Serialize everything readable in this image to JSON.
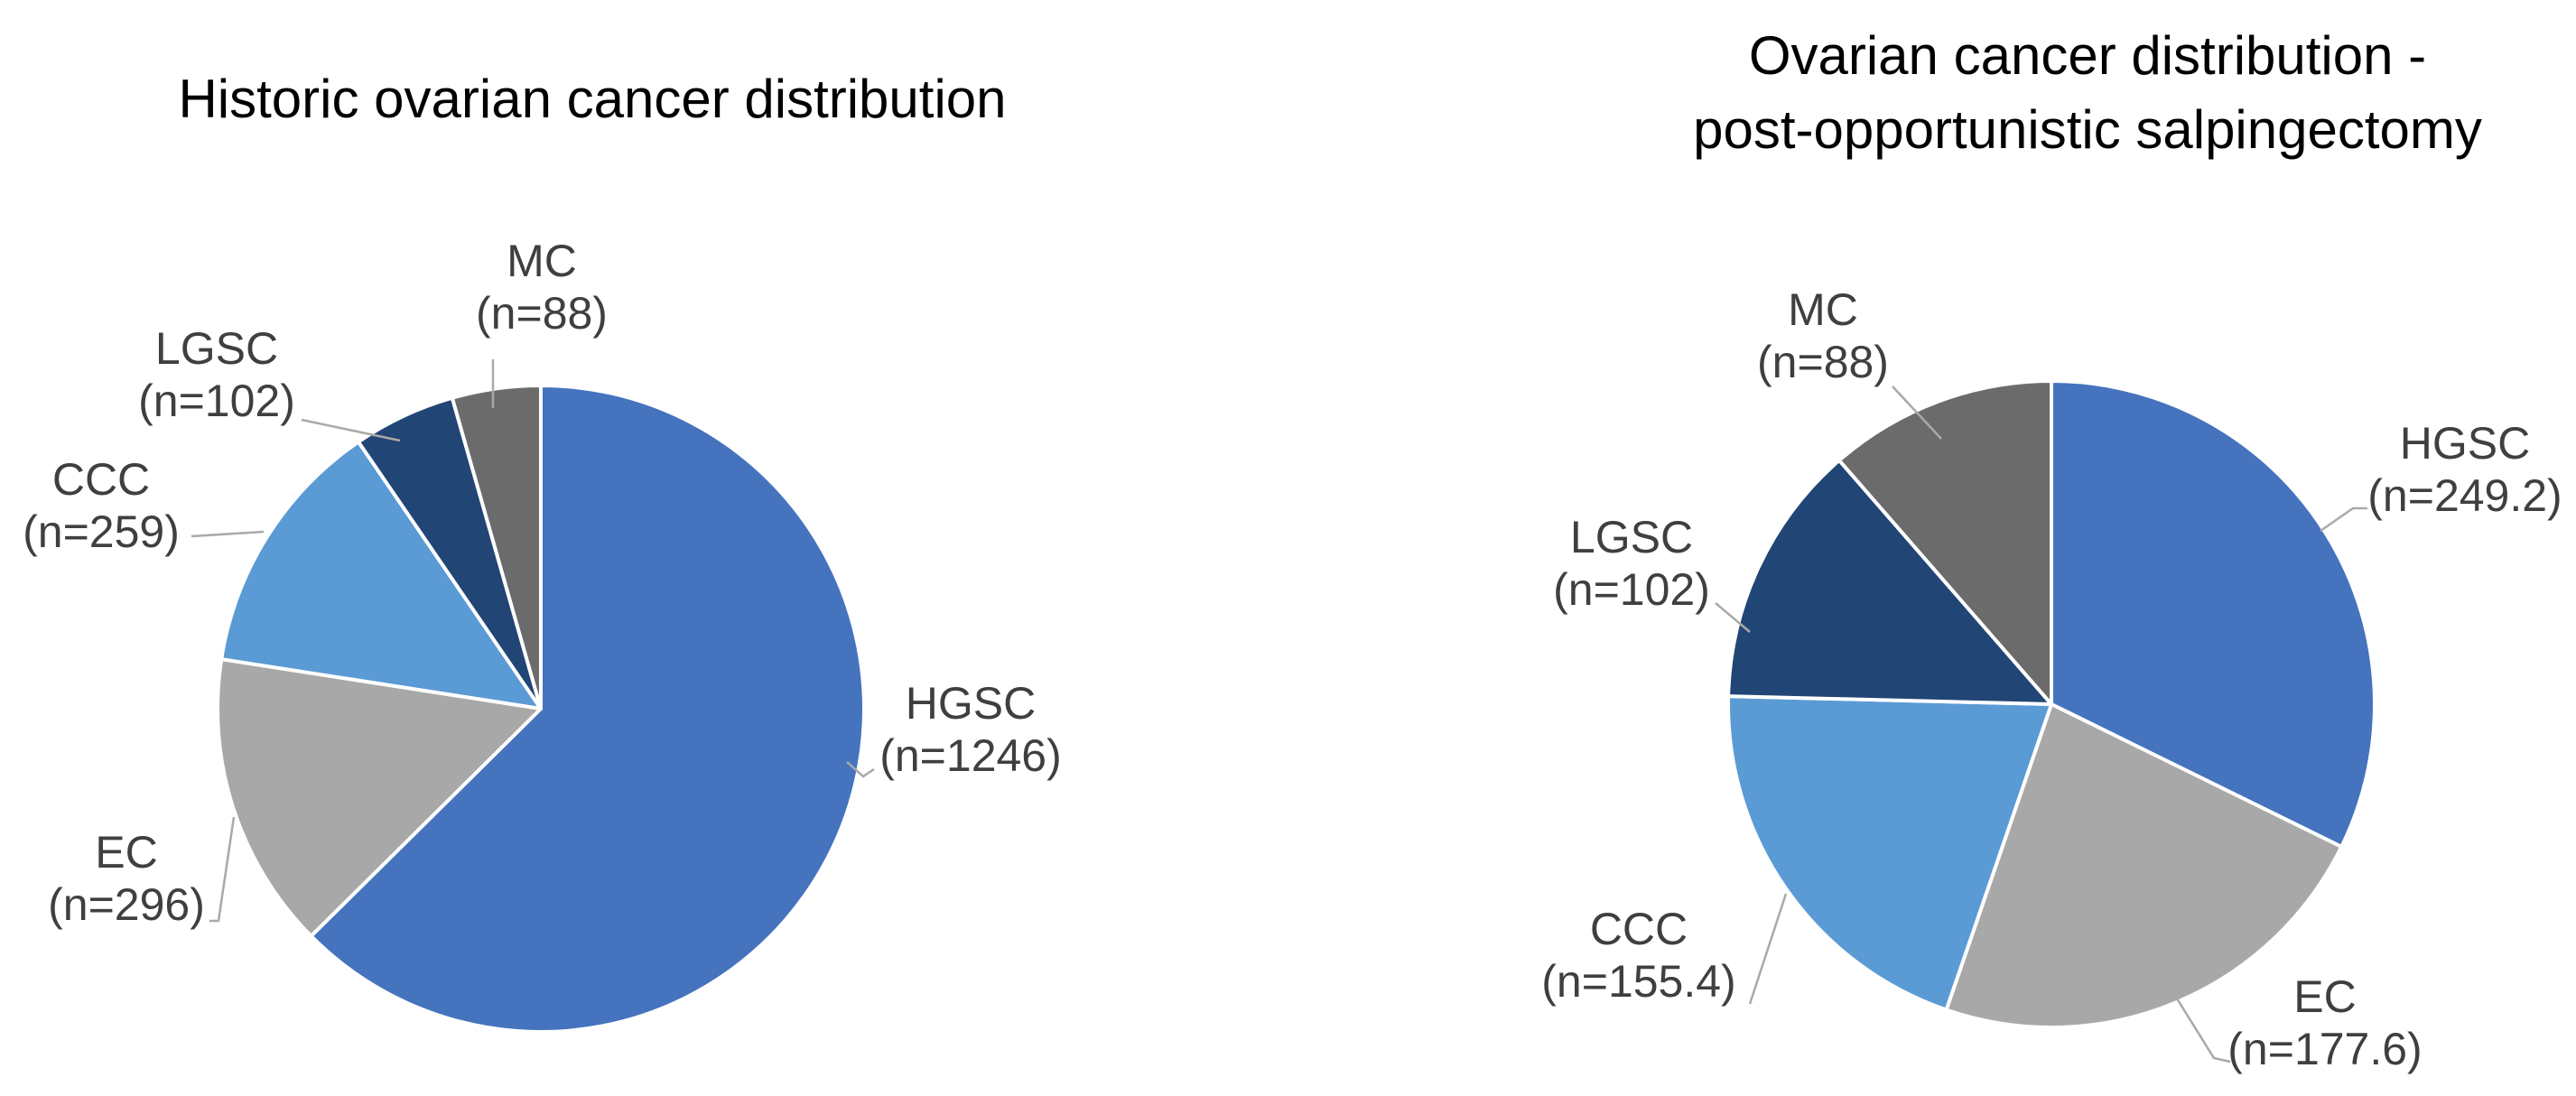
{
  "page": {
    "background": "#ffffff"
  },
  "colors": {
    "hgsc": "#4573BE",
    "ec": "#A8A8A8",
    "ccc": "#5B9BD5",
    "lgsc": "#214575",
    "mc": "#6B6B6B",
    "leader_line": "#A9A9A9",
    "slice_border": "#FFFFFF",
    "title_text": "#000000",
    "label_text": "#3F3F3F"
  },
  "chart_data": [
    {
      "type": "pie",
      "title": "Historic ovarian cancer distribution",
      "title_lines": [
        "Historic ovarian cancer distribution"
      ],
      "categories": [
        "HGSC",
        "EC",
        "CCC",
        "LGSC",
        "MC"
      ],
      "values": [
        1246,
        296,
        259,
        102,
        88
      ],
      "start_angle": "12-o'clock, clockwise",
      "label_style": "outside labels with gray leader lines, format: NAME (n=value)",
      "legend": "none",
      "slices": [
        {
          "name": "HGSC",
          "n_label": "(n=1246)",
          "value": 1246,
          "color": "#4573BE"
        },
        {
          "name": "EC",
          "n_label": "(n=296)",
          "value": 296,
          "color": "#A8A8A8"
        },
        {
          "name": "CCC",
          "n_label": "(n=259)",
          "value": 259,
          "color": "#5B9BD5"
        },
        {
          "name": "LGSC",
          "n_label": "(n=102)",
          "value": 102,
          "color": "#214575"
        },
        {
          "name": "MC",
          "n_label": "(n=88)",
          "value": 88,
          "color": "#6B6B6B"
        }
      ]
    },
    {
      "type": "pie",
      "title": "Ovarian cancer distribution - post-opportunistic salpingectomy",
      "title_lines": [
        "Ovarian cancer distribution -",
        "post-opportunistic salpingectomy"
      ],
      "categories": [
        "HGSC",
        "EC",
        "CCC",
        "LGSC",
        "MC"
      ],
      "values": [
        249.2,
        177.6,
        155.4,
        102,
        88
      ],
      "start_angle": "12-o'clock, clockwise",
      "label_style": "outside labels with gray leader lines, format: NAME (n=value)",
      "legend": "none",
      "slices": [
        {
          "name": "HGSC",
          "n_label": "(n=249.2)",
          "value": 249.2,
          "color": "#4573BE"
        },
        {
          "name": "EC",
          "n_label": "(n=177.6)",
          "value": 177.6,
          "color": "#A8A8A8"
        },
        {
          "name": "CCC",
          "n_label": "(n=155.4)",
          "value": 155.4,
          "color": "#5B9BD5"
        },
        {
          "name": "LGSC",
          "n_label": "(n=102)",
          "value": 102,
          "color": "#214575"
        },
        {
          "name": "MC",
          "n_label": "(n=88)",
          "value": 88,
          "color": "#6B6B6B"
        }
      ]
    }
  ]
}
